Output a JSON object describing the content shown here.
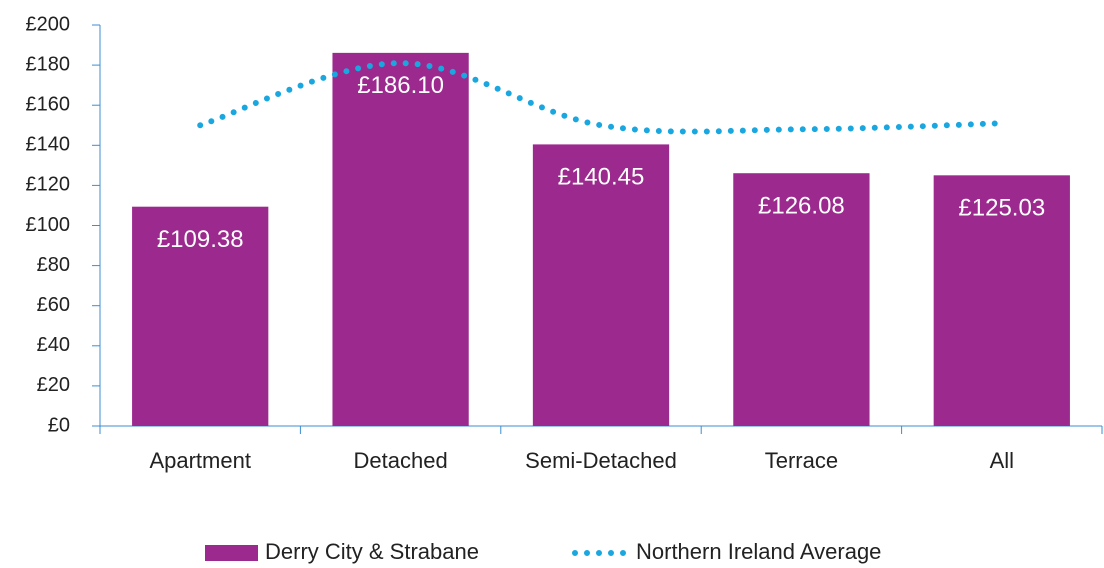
{
  "chart_data": {
    "type": "bar",
    "categories": [
      "Apartment",
      "Detached",
      "Semi-Detached",
      "Terrace",
      "All"
    ],
    "series": [
      {
        "name": "Derry City & Strabane",
        "color": "#9c2a8e",
        "type": "bar",
        "values": [
          109.38,
          186.1,
          140.45,
          126.08,
          125.03
        ],
        "value_labels": [
          "£109.38",
          "£186.10",
          "£140.45",
          "£126.08",
          "£125.03"
        ]
      },
      {
        "name": "Northern Ireland Average",
        "color": "#1aa7e0",
        "type": "line",
        "values": [
          150,
          181,
          150,
          148,
          151
        ]
      }
    ],
    "ylim": [
      0,
      200
    ],
    "yticks": [
      {
        "value": 0,
        "label": "£0"
      },
      {
        "value": 20,
        "label": "£20"
      },
      {
        "value": 40,
        "label": "£40"
      },
      {
        "value": 60,
        "label": "£60"
      },
      {
        "value": 80,
        "label": "£80"
      },
      {
        "value": 100,
        "label": "£100"
      },
      {
        "value": 120,
        "label": "£120"
      },
      {
        "value": 140,
        "label": "£140"
      },
      {
        "value": 160,
        "label": "£160"
      },
      {
        "value": 180,
        "label": "£180"
      },
      {
        "value": 200,
        "label": "£200"
      }
    ],
    "grid": false
  }
}
